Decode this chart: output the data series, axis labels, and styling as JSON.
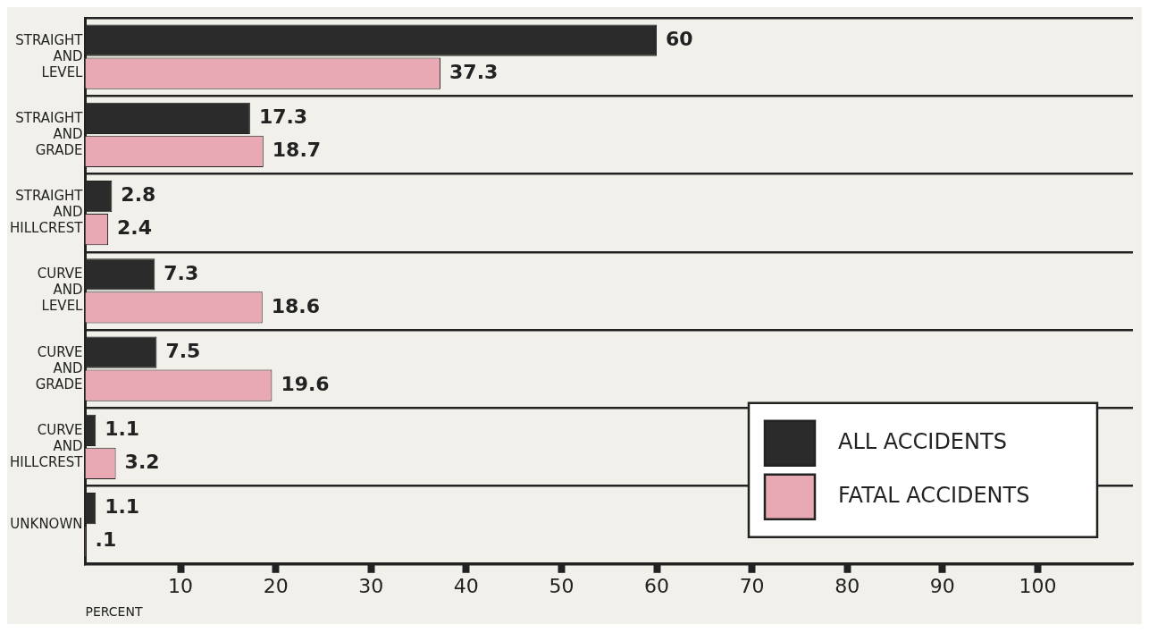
{
  "chart_data": {
    "type": "bar",
    "orientation": "horizontal",
    "xlabel": "PERCENT",
    "categories": [
      "STRAIGHT AND LEVEL",
      "STRAIGHT AND GRADE",
      "STRAIGHT AND HILLCREST",
      "CURVE AND LEVEL",
      "CURVE AND GRADE",
      "CURVE AND HILLCREST",
      "UNKNOWN"
    ],
    "series": [
      {
        "name": "ALL ACCIDENTS",
        "color": "#2b2b2b",
        "values": [
          60,
          17.3,
          2.8,
          7.3,
          7.5,
          1.1,
          1.1
        ],
        "value_labels": [
          "60",
          "17.3",
          "2.8",
          "7.3",
          "7.5",
          "1.1",
          "1.1"
        ]
      },
      {
        "name": "FATAL ACCIDENTS",
        "color": "#e9a9b4",
        "values": [
          37.3,
          18.7,
          2.4,
          18.6,
          19.6,
          3.2,
          0.1
        ],
        "value_labels": [
          "37.3",
          "18.7",
          "2.4",
          "18.6",
          "19.6",
          "3.2",
          ".1"
        ]
      }
    ],
    "xlim": [
      0,
      110
    ],
    "xticks": [
      10,
      20,
      30,
      40,
      50,
      60,
      70,
      80,
      90,
      100
    ],
    "grid": "y",
    "legend": "bottom right"
  }
}
